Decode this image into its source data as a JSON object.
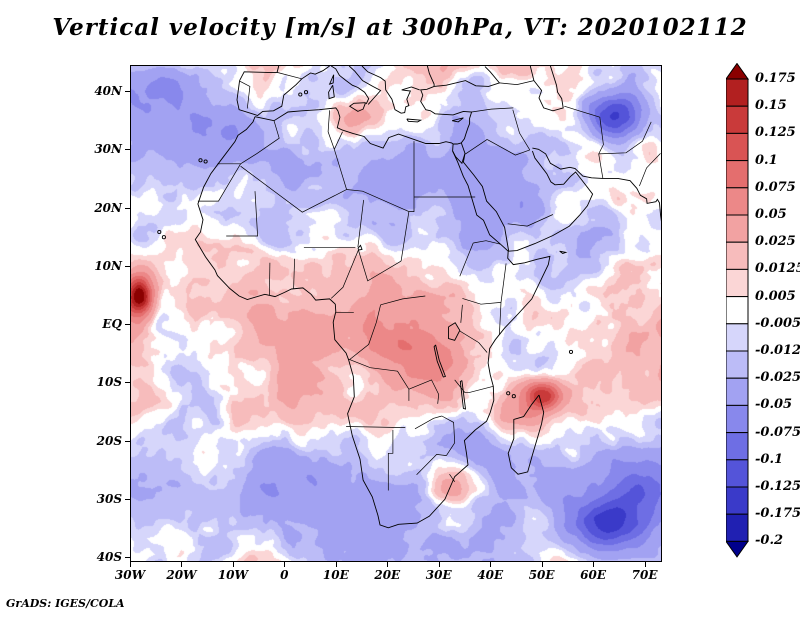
{
  "title": "Vertical velocity [m/s] at 300hPa, VT: 2020102112",
  "attribution": "GrADS: IGES/COLA",
  "axes": {
    "lat_labels": [
      "40N",
      "30N",
      "20N",
      "10N",
      "EQ",
      "10S",
      "20S",
      "30S",
      "40S"
    ],
    "lat_values": [
      40,
      30,
      20,
      10,
      0,
      -10,
      -20,
      -30,
      -40
    ],
    "lon_labels": [
      "30W",
      "20W",
      "10W",
      "0",
      "10E",
      "20E",
      "30E",
      "40E",
      "50E",
      "60E",
      "70E"
    ],
    "lon_values": [
      -30,
      -20,
      -10,
      0,
      10,
      20,
      30,
      40,
      50,
      60,
      70
    ],
    "lon_range": [
      -30,
      73
    ],
    "lat_range": [
      -40.5,
      44.5
    ]
  },
  "colorbar": {
    "labels": [
      "0.175",
      "0.15",
      "0.125",
      "0.1",
      "0.075",
      "0.05",
      "0.025",
      "0.0125",
      "0.005",
      "-0.005",
      "-0.0125",
      "-0.025",
      "-0.05",
      "-0.075",
      "-0.1",
      "-0.125",
      "-0.175",
      "-0.2"
    ],
    "boundaries": [
      0.175,
      0.15,
      0.125,
      0.1,
      0.075,
      0.05,
      0.025,
      0.0125,
      0.005,
      -0.005,
      -0.0125,
      -0.025,
      -0.05,
      -0.075,
      -0.1,
      -0.125,
      -0.175,
      -0.2
    ],
    "colors": [
      "#8b0000",
      "#b22020",
      "#c93a3a",
      "#d95454",
      "#e46e6e",
      "#ec8888",
      "#f2a2a2",
      "#f7bcbc",
      "#fbd6d6",
      "#ffffff",
      "#d6d6fb",
      "#bcbcf7",
      "#a2a2f2",
      "#8888ec",
      "#6e6ee4",
      "#5454d9",
      "#3a3ac9",
      "#2020b2",
      "#00008b"
    ]
  },
  "chart_data": {
    "type": "heatmap",
    "title": "Vertical velocity [m/s] at 300hPa, VT: 2020102112",
    "variable": "Vertical velocity",
    "units": "m/s",
    "pressure_level": "300hPa",
    "valid_time": "2020102112",
    "x_axis": {
      "label": "longitude",
      "tick_labels": [
        "30W",
        "20W",
        "10W",
        "0",
        "10E",
        "20E",
        "30E",
        "40E",
        "50E",
        "60E",
        "70E"
      ],
      "tick_values_deg": [
        -30,
        -20,
        -10,
        0,
        10,
        20,
        30,
        40,
        50,
        60,
        70
      ],
      "range_deg": [
        -30,
        73
      ]
    },
    "y_axis": {
      "label": "latitude",
      "tick_labels": [
        "40N",
        "30N",
        "20N",
        "10N",
        "EQ",
        "10S",
        "20S",
        "30S",
        "40S"
      ],
      "tick_values_deg": [
        40,
        30,
        20,
        10,
        0,
        -10,
        -20,
        -30,
        -40
      ],
      "range_deg": [
        -40.5,
        44.5
      ]
    },
    "contour_levels": [
      0.175,
      0.15,
      0.125,
      0.1,
      0.075,
      0.05,
      0.025,
      0.0125,
      0.005,
      -0.005,
      -0.0125,
      -0.025,
      -0.05,
      -0.075,
      -0.1,
      -0.125,
      -0.175,
      -0.2
    ],
    "palette_top_to_bottom": [
      "#8b0000",
      "#b22020",
      "#c93a3a",
      "#d95454",
      "#e46e6e",
      "#ec8888",
      "#f2a2a2",
      "#f7bcbc",
      "#fbd6d6",
      "#ffffff",
      "#d6d6fb",
      "#bcbcf7",
      "#a2a2f2",
      "#8888ec",
      "#6e6ee4",
      "#5454d9",
      "#3a3ac9",
      "#2020b2",
      "#00008b"
    ],
    "colorbar_position": "right",
    "map_region": "Africa with surrounding oceans, southern Europe, Arabia, Madagascar",
    "map_overlay": "coastlines and country borders in black"
  }
}
